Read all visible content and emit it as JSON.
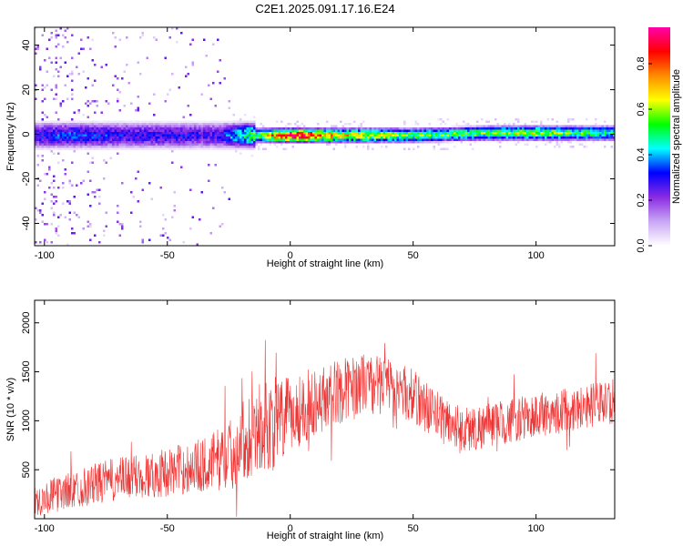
{
  "title": "C2E1.2025.091.17.16.E24",
  "chart_data": [
    {
      "type": "heatmap",
      "xlabel": "Height of straight line (km)",
      "ylabel": "Frequency (Hz)",
      "xlim": [
        -104,
        132
      ],
      "ylim": [
        -50,
        48
      ],
      "xticks": [
        -100,
        -50,
        0,
        50,
        100
      ],
      "yticks": [
        -40,
        -20,
        0,
        20,
        40
      ],
      "colorbar": {
        "label": "Normalized spectral amplitude",
        "range": [
          0,
          0.96
        ],
        "ticks": [
          0.0,
          0.2,
          0.4,
          0.6,
          0.8
        ],
        "colors": [
          "#ffffff",
          "#c9a6f5",
          "#8a2be2",
          "#0000ff",
          "#00ffff",
          "#00ff00",
          "#ffff00",
          "#ff8c00",
          "#ff0000",
          "#ff00aa"
        ]
      },
      "ridge": {
        "description_points_x": [
          -104,
          -90,
          -70,
          -50,
          -30,
          -15,
          0,
          20,
          50,
          80,
          100,
          132
        ],
        "frequency": [
          0,
          0,
          0,
          0,
          0,
          0,
          0,
          0,
          0,
          1,
          1,
          1
        ],
        "amplitude": [
          0.3,
          0.35,
          0.3,
          0.3,
          0.28,
          0.55,
          0.95,
          0.7,
          0.55,
          0.55,
          0.6,
          0.5
        ]
      }
    },
    {
      "type": "line",
      "xlabel": "Height of straight line (km)",
      "ylabel": "SNR (10 * v/v)",
      "xlim": [
        -104,
        132
      ],
      "ylim": [
        0,
        2230
      ],
      "xticks": [
        -100,
        -50,
        0,
        50,
        100
      ],
      "yticks": [
        500,
        1000,
        1500,
        2000
      ],
      "color": "#ee3333",
      "envelope": {
        "x": [
          -104,
          -95,
          -85,
          -75,
          -65,
          -55,
          -45,
          -35,
          -25,
          -15,
          -8,
          0,
          10,
          20,
          30,
          40,
          50,
          60,
          70,
          80,
          90,
          100,
          110,
          120,
          132
        ],
        "mean": [
          180,
          250,
          320,
          380,
          420,
          450,
          500,
          550,
          650,
          900,
          950,
          1050,
          1200,
          1300,
          1400,
          1350,
          1250,
          1050,
          900,
          950,
          1000,
          1050,
          1100,
          1150,
          1200
        ],
        "spread": [
          160,
          180,
          200,
          220,
          230,
          240,
          260,
          280,
          350,
          450,
          500,
          400,
          350,
          330,
          300,
          300,
          280,
          260,
          250,
          230,
          230,
          230,
          230,
          230,
          230
        ]
      }
    }
  ]
}
